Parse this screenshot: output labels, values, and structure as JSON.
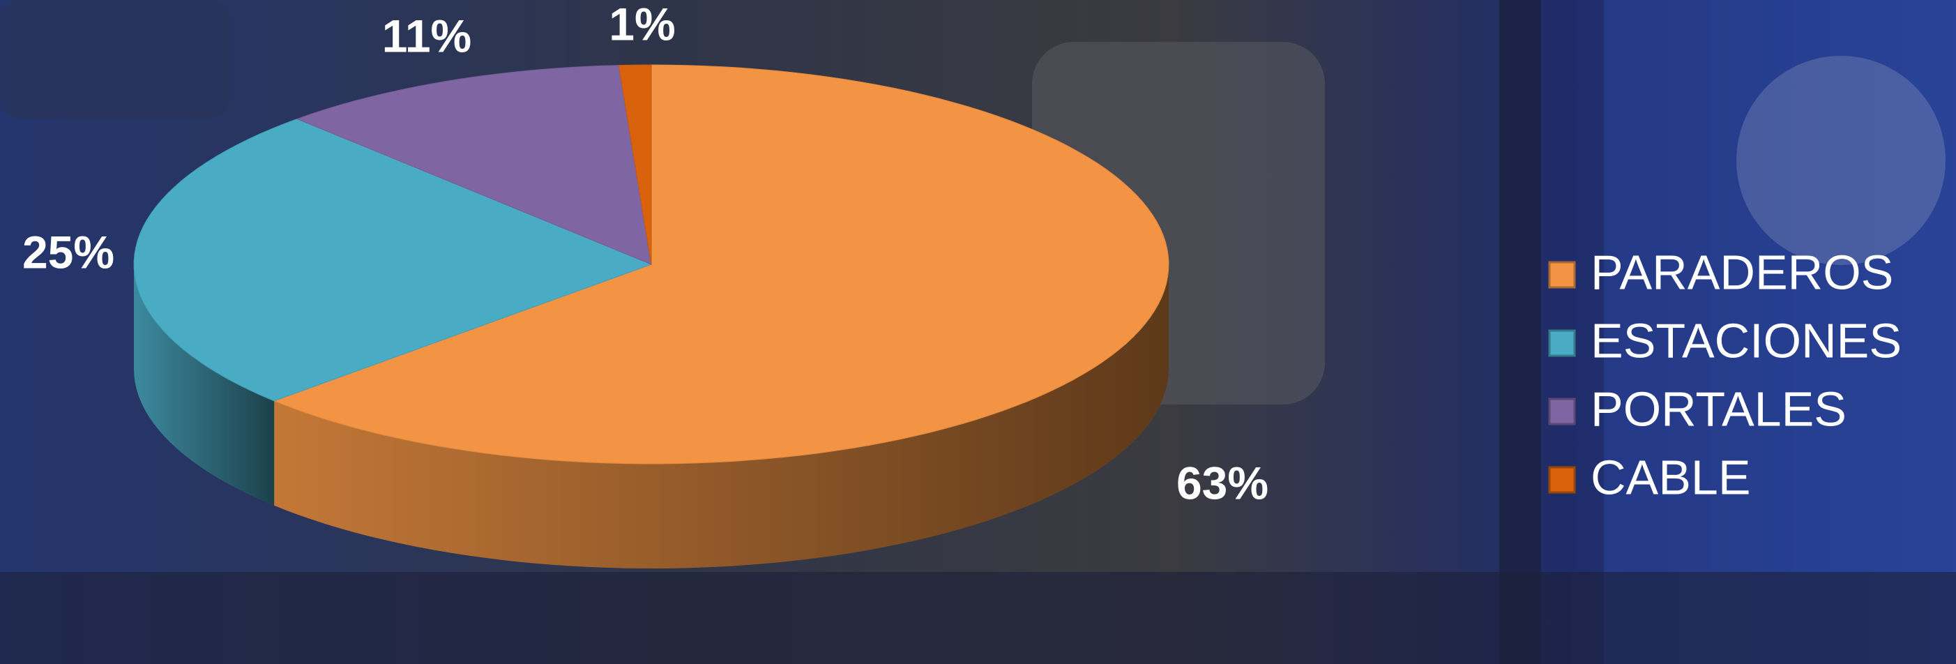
{
  "chart_data": {
    "type": "pie",
    "categories": [
      "PARADEROS",
      "ESTACIONES",
      "PORTALES",
      "CABLE"
    ],
    "values": [
      63,
      25,
      11,
      1
    ],
    "value_labels": [
      "63%",
      "25%",
      "11%",
      "1%"
    ],
    "colors": [
      "#f29444",
      "#4aabc5",
      "#8065a3",
      "#d9620c"
    ],
    "legend": "right"
  }
}
